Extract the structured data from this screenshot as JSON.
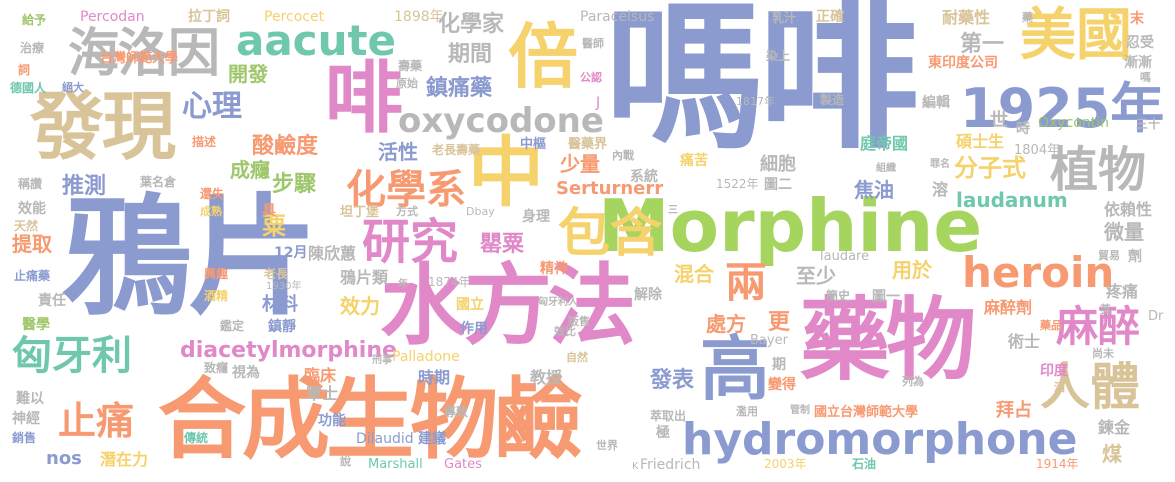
{
  "words": {
    "w_mafei": "嗎啡",
    "w_yapian": "鴉片",
    "w_morphine": "Morphine",
    "w_hecheng": "合成生物鹼",
    "w_shuifang": "水方法",
    "w_yaowu": "藥物",
    "w_faxian": "發現",
    "w_fei": "啡",
    "w_zhong": "中",
    "w_bei": "倍",
    "w_hydro": "hydromorphone",
    "w_gao": "高",
    "w_haiyin": "海洛因",
    "w_aacute": "aacute",
    "w_1925": "1925年",
    "w_meiguo": "美國",
    "w_oxycodone": "oxycodone",
    "w_baohan": "包含",
    "w_yanjiu": "研究",
    "w_heroin": "heroin",
    "w_zhiwu": "植物",
    "w_renti": "人體",
    "w_mazui": "麻醉",
    "w_huaxuexi": "化學系",
    "w_xiongyali": "匈牙利",
    "w_zhitong": "止痛",
    "w_liang": "兩",
    "w_xinli": "心理",
    "w_diacetyl": "diacetylmorphine",
    "w_huaxuejia": "化學家",
    "w_qijian": "期間",
    "w_zhentongyao": "鎮痛藥",
    "w_suanjiandu": "酸鹼度",
    "w_kaifa": "開發",
    "w_chengyin": "成癮",
    "w_tuice": "推測",
    "w_buzhou": "步驟",
    "w_huoxing": "活性",
    "w_shaoliang": "少量",
    "w_xibao": "細胞",
    "w_serturnerr": "Serturnerr",
    "w_fenzishi": "分子式",
    "w_laudanum": "laudanum",
    "w_jiaoyou": "焦油",
    "w_diyi": "第一",
    "w_taida": "台灣師範大學",
    "w_percodan": "Percodan",
    "w_ladingci": "拉丁詞",
    "w_percocet": "Percocet",
    "w_1898": "1898年",
    "w_paracelsus": "Paracelsus",
    "w_nisu": "耐藥性",
    "w_dongyindu": "東印度公司",
    "w_oxycontin": "Oxycontin",
    "w_shuoshisheng": "碩士生",
    "w_1804": "1804年",
    "w_tingdiguo": "庭帝國",
    "w_yilaixing": "依賴性",
    "w_weiliang": "微量",
    "w_tiqu": "提取",
    "w_su": "粟",
    "w_yingsu": "罌粟",
    "w_chenxinhui": "陳欣蕙",
    "w_yapianlei": "鴉片類",
    "w_12yue": "12月",
    "w_hunhe": "混合",
    "w_yongyu": "用於",
    "w_zhishao": "至少",
    "w_jingshen": "精神",
    "w_laudare": "laudare",
    "w_xiaoli": "效力",
    "w_cailiao": "材料",
    "w_chufang": "處方",
    "w_geng": "更",
    "w_mazuiji": "麻醉劑",
    "w_shushi": "術士",
    "w_linchuang": "臨床",
    "w_fabiao": "發表",
    "w_shiqi": "時期",
    "w_jiaoshou": "教授",
    "w_palladone": "Palladone",
    "w_bayer": "Bayer",
    "w_gongneng": "功能",
    "w_junshi": "軍士",
    "w_dilaudid": "Dilaudid",
    "w_jianyi": "建議",
    "w_guolitaida": "國立台灣師範大學",
    "w_baizhan": "拜占",
    "w_nos": "nos",
    "w_qianzaili": "潛在力",
    "w_marshall": "Marshall",
    "w_gates": "Gates",
    "w_friedrich": "Friedrich",
    "w_2003": "2003年",
    "w_shiyou": "石油",
    "w_1914": "1914年",
    "w_meitan": "煤",
    "w_liangjin": "鍊金",
    "w_tengtong": "疼痛",
    "w_shenjing": "神經",
    "w_xiaoshou": "銷售",
    "w_chuantong": "傳統",
    "w_zeren": "責任",
    "w_yixue": "醫學",
    "w_zhitongyao": "止痛藥",
    "w_xingqu": "興趣",
    "w_jiujing": "酒精",
    "w_1930": "1930年",
    "w_1874": "1874年",
    "w_guoli": "國立",
    "w_zuoyong": "作用",
    "w_jiechu": "解除",
    "w_mianfa": "免疫",
    "w_shenshou": "身理",
    "w_xitong": "系統",
    "w_1522": "1522年",
    "w_tuer": "圖二",
    "w_tuyi": "圖一",
    "w_jianshi": "簡史",
    "w_tongku": "痛苦",
    "w_jinshi": "世",
    "w_shi": "時",
    "w_zhongshu": "中樞",
    "w_yiyaojie": "醫藥界",
    "w_shoushou": "壽藥",
    "w_yuanshi": "原始",
    "w_gongpi": "公認",
    "w_ranshang": "染上",
    "w_1817": "1817年",
    "w_zhizao": "製造",
    "w_bianji": "編輯",
    "w_zhengque": "正確",
    "w_ruzhi": "乳汁",
    "w_mo": "末",
    "w_renshou": "忍受",
    "w_jianxin": "漸漸",
    "w_sanshi": "三十",
    "w_zhucheng": "主成",
    "w_jiyu": "給予",
    "w_zhiliao": "治療",
    "w_ci": "詞",
    "w_deguoren": "德國人",
    "w_jueda": "絕大",
    "w_yishi": "醫師",
    "w_miaoshu": "描述",
    "w_laozhangshou": "老長壽藥",
    "w_neizhan": "內戰",
    "w_chengzan": "稱讚",
    "w_yemingcang": "葉名倉",
    "w_huanshi": "還失",
    "w_xiaoneng": "效能",
    "w_chengshu": "成熟",
    "w_tianran": "天然",
    "w_ju": "具",
    "w_tandingbao": "坦丁堡",
    "w_fangshi": "方式",
    "w_dbay": "Dbay",
    "w_laozhang": "老長",
    "w_jianding": "鑑定",
    "w_zhenjing": "鎮靜",
    "w_zhiyuan": "致癮",
    "w_shiwei": "視為",
    "w_nanyi": "難以",
    "w_xingshi": "刑事",
    "w_daozhi": "導致",
    "w_cuiquchu": "萃取出",
    "w_ji": "極",
    "w_lanyong": "濫用",
    "w_guanzhi": "管制",
    "w_shijie": "世界",
    "w_shuo": "說",
    "w_nian": "年",
    "w_kuang": "K",
    "w_xiaobi": "效比",
    "w_fanshou": "販售",
    "w_ziran": "自然",
    "w_qi": "期",
    "w_biande": "變得",
    "w_liewei": "列為",
    "w_yindu": "印度",
    "w_jiu": "酒",
    "w_yaopin": "藥品",
    "w_shangwei": "尚未",
    "w_dr": "Dr",
    "w_maoyi": "貿易",
    "w_ji2": "劑",
    "w_yingwen": "英",
    "w_j": "J",
    "w_zuiming": "罪名",
    "w_zuzhi": "組織",
    "w_gongwenliren": "匈牙利人",
    "w_san": "三",
    "w_yinli": "溶",
    "w_yiyao": "藥",
    "w_jizhong": "嗎"
  }
}
